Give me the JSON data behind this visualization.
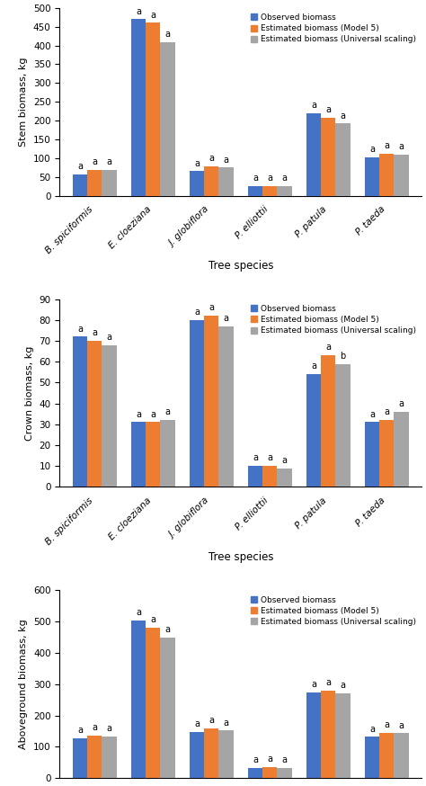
{
  "species": [
    "B. spiciformis",
    "E. cloeziana",
    "J. globiflora",
    "P. elliottii",
    "P. patula",
    "P. taeda"
  ],
  "colors": {
    "observed": "#4472C4",
    "model5": "#ED7D31",
    "universal": "#A5A5A5"
  },
  "legend_labels": [
    "Observed biomass",
    "Estimated biomass (Model 5)",
    "Estimated biomass (Universal scaling)"
  ],
  "plots": [
    {
      "ylabel": "Stem biomass, kg",
      "ylim": [
        0,
        500
      ],
      "yticks": [
        0,
        50,
        100,
        150,
        200,
        250,
        300,
        350,
        400,
        450,
        500
      ],
      "observed": [
        57,
        470,
        65,
        25,
        220,
        103
      ],
      "model5": [
        68,
        460,
        78,
        25,
        207,
        112
      ],
      "universal": [
        68,
        408,
        75,
        25,
        192,
        110
      ],
      "letters_obs": [
        "a",
        "a",
        "a",
        "a",
        "a",
        "a"
      ],
      "letters_m5": [
        "a",
        "a",
        "a",
        "a",
        "a",
        "a"
      ],
      "letters_uni": [
        "a",
        "a",
        "a",
        "a",
        "a",
        "a"
      ]
    },
    {
      "ylabel": "Crown biomass, kg",
      "ylim": [
        0,
        90
      ],
      "yticks": [
        0,
        10,
        20,
        30,
        40,
        50,
        60,
        70,
        80,
        90
      ],
      "observed": [
        72,
        31,
        80,
        10,
        54,
        31
      ],
      "model5": [
        70,
        31,
        82,
        10,
        63,
        32
      ],
      "universal": [
        68,
        32,
        77,
        9,
        59,
        36
      ],
      "letters_obs": [
        "a",
        "a",
        "a",
        "a",
        "a",
        "a"
      ],
      "letters_m5": [
        "a",
        "a",
        "a",
        "a",
        "a",
        "a"
      ],
      "letters_uni": [
        "a",
        "a",
        "a",
        "a",
        "b",
        "a"
      ]
    },
    {
      "ylabel": "Aboveground biomass, kg",
      "ylim": [
        0,
        600
      ],
      "yticks": [
        0,
        100,
        200,
        300,
        400,
        500,
        600
      ],
      "observed": [
        128,
        503,
        148,
        32,
        273,
        132
      ],
      "model5": [
        135,
        480,
        158,
        35,
        280,
        144
      ],
      "universal": [
        133,
        450,
        152,
        33,
        270,
        143
      ],
      "letters_obs": [
        "a",
        "a",
        "a",
        "a",
        "a",
        "a"
      ],
      "letters_m5": [
        "a",
        "a",
        "a",
        "a",
        "a",
        "a"
      ],
      "letters_uni": [
        "a",
        "a",
        "a",
        "a",
        "a",
        "a"
      ]
    }
  ]
}
